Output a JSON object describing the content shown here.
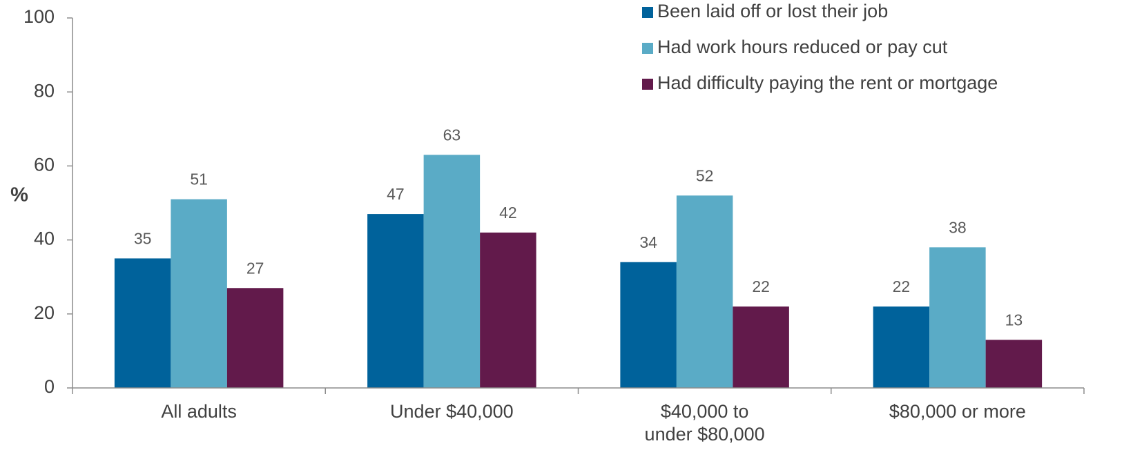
{
  "chart_data": {
    "type": "bar",
    "y_label": "%",
    "categories": [
      "All adults",
      "Under $40,000",
      [
        "$40,000 to",
        "under $80,000"
      ],
      "$80,000 or more"
    ],
    "series": [
      {
        "name": "Been laid off or lost their job",
        "color": "#00629b",
        "values": [
          35,
          47,
          34,
          22
        ]
      },
      {
        "name": "Had work hours reduced or pay cut",
        "color": "#5aabc6",
        "values": [
          51,
          63,
          52,
          38
        ]
      },
      {
        "name": "Had difficulty paying the rent or mortgage",
        "color": "#621a4b",
        "values": [
          27,
          42,
          22,
          13
        ]
      }
    ],
    "ylim": [
      0,
      100
    ],
    "yticks": [
      0,
      20,
      40,
      60,
      80,
      100
    ],
    "legend": "top-right"
  }
}
